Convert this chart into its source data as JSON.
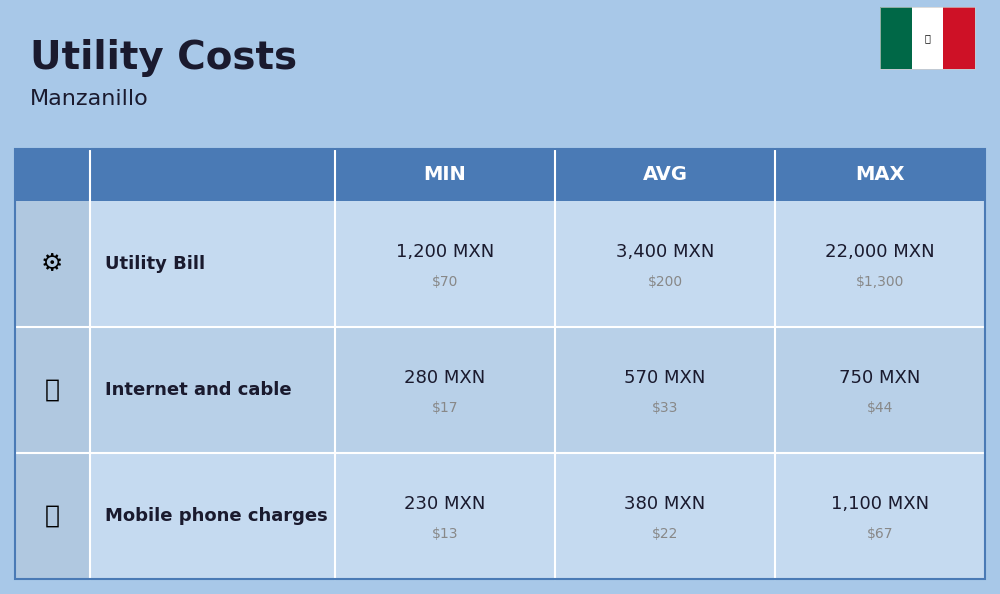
{
  "title": "Utility Costs",
  "subtitle": "Manzanillo",
  "background_color": "#a8c8e8",
  "header_color": "#4a7ab5",
  "header_text_color": "#ffffff",
  "row_color_light": "#c5daf0",
  "row_color_dark": "#b8d0e8",
  "icon_col_color": "#b0c8e0",
  "divider_color": "#ffffff",
  "columns": [
    "MIN",
    "AVG",
    "MAX"
  ],
  "rows": [
    {
      "label": "Utility Bill",
      "icon": "utility",
      "min_mxn": "1,200 MXN",
      "min_usd": "$70",
      "avg_mxn": "3,400 MXN",
      "avg_usd": "$200",
      "max_mxn": "22,000 MXN",
      "max_usd": "$1,300"
    },
    {
      "label": "Internet and cable",
      "icon": "internet",
      "min_mxn": "280 MXN",
      "min_usd": "$17",
      "avg_mxn": "570 MXN",
      "avg_usd": "$33",
      "max_mxn": "750 MXN",
      "max_usd": "$44"
    },
    {
      "label": "Mobile phone charges",
      "icon": "mobile",
      "min_mxn": "230 MXN",
      "min_usd": "$13",
      "avg_mxn": "380 MXN",
      "avg_usd": "$22",
      "max_mxn": "1,100 MXN",
      "max_usd": "$67"
    }
  ],
  "title_fontsize": 28,
  "subtitle_fontsize": 16,
  "header_fontsize": 14,
  "label_fontsize": 13,
  "value_fontsize": 13,
  "usd_fontsize": 10,
  "flag_colors": [
    "#006847",
    "#ffffff",
    "#ce1126"
  ],
  "text_color_dark": "#1a1a2e",
  "text_color_gray": "#888888"
}
